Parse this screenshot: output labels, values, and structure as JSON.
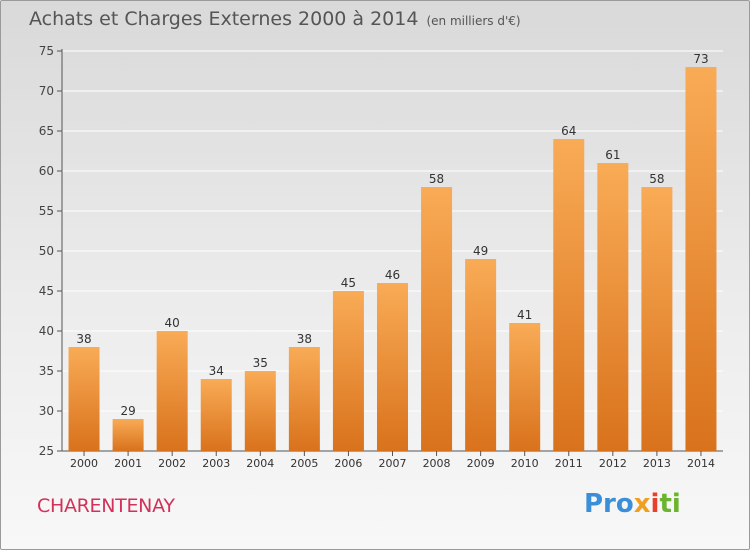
{
  "title": "Achats et Charges Externes 2000 à 2014",
  "unit_label": "(en milliers d'€)",
  "commune": "CHARENTENAY",
  "brand": {
    "part1": "Pro",
    "part2": "x",
    "part3": "i",
    "part4": "ti"
  },
  "colors": {
    "bar_light": "#f9ab56",
    "bar_dark": "#d9721c",
    "grid": "#ffffff",
    "axis": "#555555",
    "commune": "#d2325a"
  },
  "chart_data": {
    "type": "bar",
    "categories": [
      "2000",
      "2001",
      "2002",
      "2003",
      "2004",
      "2005",
      "2006",
      "2007",
      "2008",
      "2009",
      "2010",
      "2011",
      "2012",
      "2013",
      "2014"
    ],
    "values": [
      38,
      29,
      40,
      34,
      35,
      38,
      45,
      46,
      58,
      49,
      41,
      64,
      61,
      58,
      73
    ],
    "title": "Achats et Charges Externes 2000 à 2014",
    "xlabel": "",
    "ylabel": "",
    "ylim": [
      25,
      75
    ],
    "yticks": [
      25,
      30,
      35,
      40,
      45,
      50,
      55,
      60,
      65,
      70,
      75
    ],
    "grid": true,
    "data_labels": true
  }
}
